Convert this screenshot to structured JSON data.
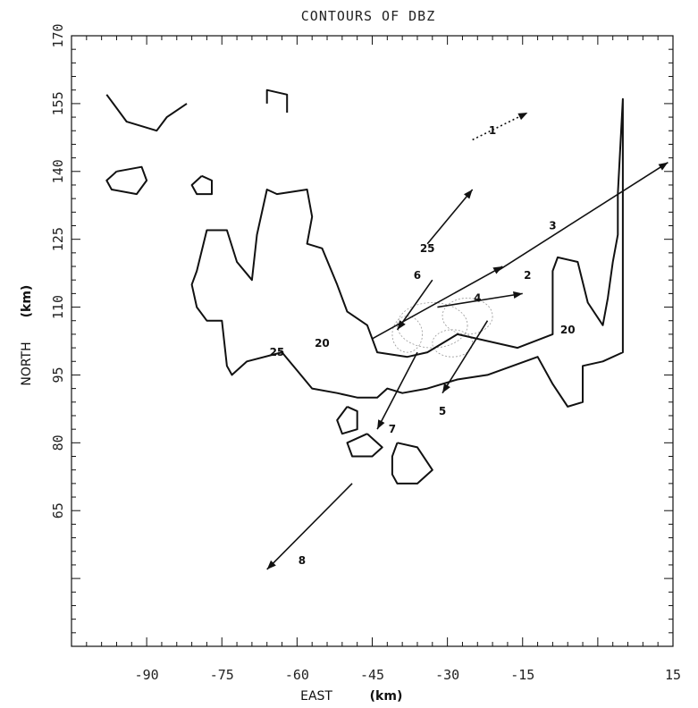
{
  "chart_data": {
    "type": "line",
    "title": "CONTOURS OF DBZ",
    "xlabel": "EAST",
    "xlabel_unit": "(km)",
    "ylabel": "NORTH",
    "ylabel_unit": "(km)",
    "xlim": [
      -105,
      15
    ],
    "ylim": [
      35,
      170
    ],
    "xticks": [
      -90,
      -75,
      -60,
      -45,
      -30,
      -15,
      0,
      15
    ],
    "xtick_labels": [
      "-90",
      "-75",
      "-60",
      "-45",
      "-30",
      "-15",
      "",
      "15"
    ],
    "yticks": [
      50,
      65,
      80,
      95,
      110,
      125,
      140,
      155,
      170
    ],
    "ytick_labels": [
      "",
      "65",
      "80",
      "95",
      "110",
      "125",
      "140",
      "155",
      "170"
    ],
    "contour_labels": [
      {
        "text": "25",
        "x": -34,
        "y": 123
      },
      {
        "text": "20",
        "x": -55,
        "y": 102
      },
      {
        "text": "25",
        "x": -64,
        "y": 100
      },
      {
        "text": "20",
        "x": -6,
        "y": 105
      }
    ],
    "contours": [
      {
        "level": 20,
        "points": [
          [
            -80,
            118
          ],
          [
            -78,
            127
          ],
          [
            -74,
            127
          ],
          [
            -72,
            120
          ],
          [
            -69,
            116
          ],
          [
            -68,
            126
          ],
          [
            -66,
            136
          ],
          [
            -64,
            135
          ],
          [
            -58,
            136
          ],
          [
            -57,
            130
          ],
          [
            -58,
            124
          ],
          [
            -55,
            123
          ],
          [
            -52,
            115
          ],
          [
            -50,
            109
          ],
          [
            -46,
            106
          ],
          [
            -44,
            100
          ],
          [
            -38,
            99
          ],
          [
            -34,
            100
          ],
          [
            -28,
            104
          ],
          [
            -16,
            101
          ],
          [
            -9,
            104
          ],
          [
            -9,
            118
          ],
          [
            -8,
            121
          ],
          [
            -4,
            120
          ],
          [
            -2,
            111
          ],
          [
            1,
            106
          ],
          [
            2,
            112
          ],
          [
            3,
            120
          ],
          [
            4,
            126
          ],
          [
            4,
            135
          ],
          [
            5,
            156
          ],
          [
            5,
            100
          ],
          [
            1,
            98
          ],
          [
            -3,
            97
          ],
          [
            -3,
            89
          ],
          [
            -6,
            88
          ],
          [
            -9,
            93
          ],
          [
            -12,
            99
          ],
          [
            -22,
            95
          ],
          [
            -28,
            94
          ],
          [
            -34,
            92
          ],
          [
            -39,
            91
          ],
          [
            -42,
            92
          ],
          [
            -44,
            90
          ],
          [
            -48,
            90
          ],
          [
            -52,
            91
          ],
          [
            -57,
            92
          ],
          [
            -60,
            96
          ],
          [
            -63,
            100
          ],
          [
            -70,
            98
          ],
          [
            -73,
            95
          ],
          [
            -74,
            97
          ],
          [
            -75,
            107
          ],
          [
            -78,
            107
          ],
          [
            -80,
            110
          ],
          [
            -81,
            115
          ],
          [
            -80,
            118
          ]
        ]
      },
      {
        "level": 20,
        "points": [
          [
            -98,
            157
          ],
          [
            -94,
            151
          ],
          [
            -88,
            149
          ],
          [
            -86,
            152
          ],
          [
            -82,
            155
          ]
        ]
      },
      {
        "level": 20,
        "points": [
          [
            -66,
            155
          ],
          [
            -66,
            158
          ],
          [
            -62,
            157
          ],
          [
            -62,
            153
          ]
        ]
      },
      {
        "level": 20,
        "points": [
          [
            -96,
            140
          ],
          [
            -91,
            141
          ],
          [
            -90,
            138
          ],
          [
            -92,
            135
          ],
          [
            -97,
            136
          ],
          [
            -98,
            138
          ],
          [
            -96,
            140
          ]
        ]
      },
      {
        "level": 20,
        "points": [
          [
            -79,
            139
          ],
          [
            -77,
            138
          ],
          [
            -77,
            135
          ],
          [
            -80,
            135
          ],
          [
            -81,
            137
          ],
          [
            -79,
            139
          ]
        ]
      },
      {
        "level": 20,
        "points": [
          [
            -50,
            88
          ],
          [
            -48,
            87
          ],
          [
            -48,
            83
          ],
          [
            -51,
            82
          ],
          [
            -52,
            85
          ],
          [
            -50,
            88
          ]
        ]
      },
      {
        "level": 20,
        "points": [
          [
            -46,
            82
          ],
          [
            -43,
            79
          ],
          [
            -45,
            77
          ],
          [
            -49,
            77
          ],
          [
            -50,
            80
          ],
          [
            -46,
            82
          ]
        ]
      },
      {
        "level": 20,
        "points": [
          [
            -40,
            80
          ],
          [
            -36,
            79
          ],
          [
            -33,
            74
          ],
          [
            -36,
            71
          ],
          [
            -40,
            71
          ],
          [
            -41,
            73
          ],
          [
            -41,
            77
          ],
          [
            -40,
            80
          ]
        ]
      }
    ],
    "vectors": [
      {
        "label": "1",
        "lx": -21,
        "ly": 149,
        "x0": -25,
        "y0": 147,
        "x1": -14,
        "y1": 153,
        "dashed": true
      },
      {
        "label": "1",
        "lx": null,
        "ly": null,
        "x0": -34,
        "y0": 124,
        "x1": -25,
        "y1": 136,
        "dashed": false
      },
      {
        "label": "2",
        "lx": -14,
        "ly": 117,
        "x0": -45,
        "y0": 103,
        "x1": -19,
        "y1": 119,
        "dashed": false
      },
      {
        "label": "3",
        "lx": -9,
        "ly": 128,
        "x0": -20,
        "y0": 118,
        "x1": 14,
        "y1": 142,
        "dashed": false
      },
      {
        "label": "4",
        "lx": -24,
        "ly": 112,
        "x0": -32,
        "y0": 110,
        "x1": -15,
        "y1": 113,
        "dashed": false
      },
      {
        "label": "5",
        "lx": -31,
        "ly": 87,
        "x0": -22,
        "y0": 107,
        "x1": -31,
        "y1": 91,
        "dashed": false
      },
      {
        "label": "6",
        "lx": -36,
        "ly": 117,
        "x0": -33,
        "y0": 116,
        "x1": -40,
        "y1": 105,
        "dashed": false
      },
      {
        "label": "7",
        "lx": -41,
        "ly": 83,
        "x0": -36,
        "y0": 100,
        "x1": -44,
        "y1": 83,
        "dashed": false
      },
      {
        "label": "8",
        "lx": -59,
        "ly": 54,
        "x0": -49,
        "y0": 71,
        "x1": -66,
        "y1": 52,
        "dashed": false
      }
    ]
  }
}
